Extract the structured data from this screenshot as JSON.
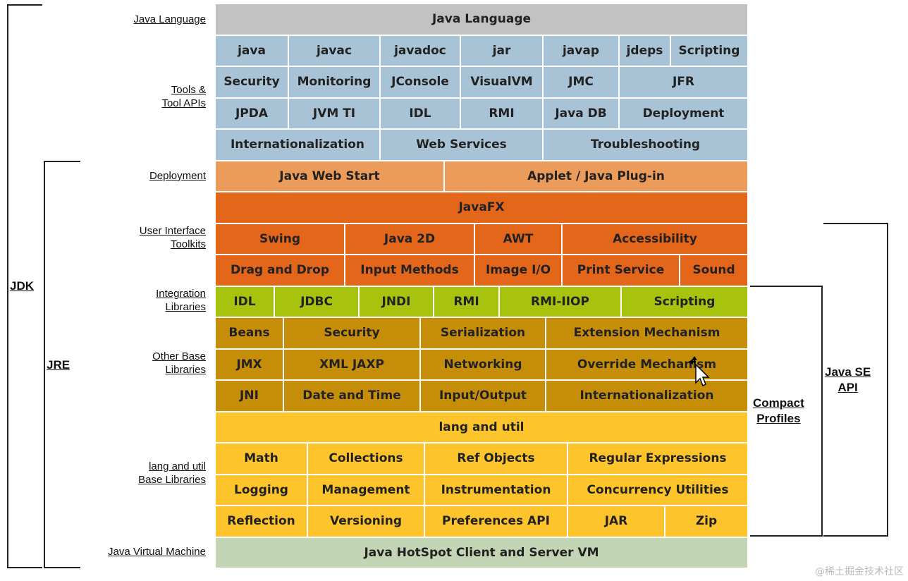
{
  "rows": [
    {
      "label": "",
      "cells": [
        {
          "text": "Java Language",
          "w": 756
        }
      ]
    },
    {
      "cells": [
        {
          "text": "java",
          "w": 104
        },
        {
          "text": "javac",
          "w": 130
        },
        {
          "text": "javadoc",
          "w": 114
        },
        {
          "text": "jar",
          "w": 117
        },
        {
          "text": "javap",
          "w": 108
        },
        {
          "text": "jdeps",
          "w": 73
        },
        {
          "text": "Scripting",
          "w": 110
        }
      ]
    },
    {
      "cells": [
        {
          "text": "Security",
          "w": 104
        },
        {
          "text": "Monitoring",
          "w": 130
        },
        {
          "text": "JConsole",
          "w": 114
        },
        {
          "text": "VisualVM",
          "w": 117
        },
        {
          "text": "JMC",
          "w": 108
        },
        {
          "text": "JFR",
          "w": 183
        }
      ]
    },
    {
      "cells": [
        {
          "text": "JPDA",
          "w": 104
        },
        {
          "text": "JVM TI",
          "w": 130
        },
        {
          "text": "IDL",
          "w": 114
        },
        {
          "text": "RMI",
          "w": 117
        },
        {
          "text": "Java DB",
          "w": 108
        },
        {
          "text": "Deployment",
          "w": 183
        }
      ]
    },
    {
      "cells": [
        {
          "text": "Internationalization",
          "w": 234
        },
        {
          "text": "Web Services",
          "w": 231
        },
        {
          "text": "Troubleshooting",
          "w": 291
        }
      ]
    },
    {
      "cells": [
        {
          "text": "Java Web Start",
          "w": 325
        },
        {
          "text": "Applet / Java Plug-in",
          "w": 431
        }
      ]
    },
    {
      "cells": [
        {
          "text": "JavaFX",
          "w": 756
        }
      ]
    },
    {
      "cells": [
        {
          "text": "Swing",
          "w": 184
        },
        {
          "text": "Java 2D",
          "w": 184
        },
        {
          "text": "AWT",
          "w": 124
        },
        {
          "text": "Accessibility",
          "w": 264
        }
      ]
    },
    {
      "cells": [
        {
          "text": "Drag and Drop",
          "w": 184
        },
        {
          "text": "Input Methods",
          "w": 184
        },
        {
          "text": "Image I/O",
          "w": 124
        },
        {
          "text": "Print Service",
          "w": 167
        },
        {
          "text": "Sound",
          "w": 97
        }
      ]
    },
    {
      "cells": [
        {
          "text": "IDL",
          "w": 84
        },
        {
          "text": "JDBC",
          "w": 120
        },
        {
          "text": "JNDI",
          "w": 106
        },
        {
          "text": "RMI",
          "w": 93
        },
        {
          "text": "RMI-IIOP",
          "w": 173
        },
        {
          "text": "Scripting",
          "w": 180
        }
      ]
    },
    {
      "cells": [
        {
          "text": "Beans",
          "w": 97
        },
        {
          "text": "Security",
          "w": 194
        },
        {
          "text": "Serialization",
          "w": 178
        },
        {
          "text": "Extension Mechanism",
          "w": 287
        }
      ]
    },
    {
      "cells": [
        {
          "text": "JMX",
          "w": 97
        },
        {
          "text": "XML JAXP",
          "w": 194
        },
        {
          "text": "Networking",
          "w": 178
        },
        {
          "text": "Override Mechanism",
          "w": 287
        }
      ]
    },
    {
      "cells": [
        {
          "text": "JNI",
          "w": 97
        },
        {
          "text": "Date and Time",
          "w": 194
        },
        {
          "text": "Input/Output",
          "w": 178
        },
        {
          "text": "Internationalization",
          "w": 287
        }
      ]
    },
    {
      "cells": [
        {
          "text": "lang and util",
          "w": 756
        }
      ]
    },
    {
      "cells": [
        {
          "text": "Math",
          "w": 131
        },
        {
          "text": "Collections",
          "w": 166
        },
        {
          "text": "Ref Objects",
          "w": 203
        },
        {
          "text": "Regular Expressions",
          "w": 256
        }
      ]
    },
    {
      "cells": [
        {
          "text": "Logging",
          "w": 131
        },
        {
          "text": "Management",
          "w": 166
        },
        {
          "text": "Instrumentation",
          "w": 203
        },
        {
          "text": "Concurrency Utilities",
          "w": 256
        }
      ]
    },
    {
      "cells": [
        {
          "text": "Reflection",
          "w": 131
        },
        {
          "text": "Versioning",
          "w": 166
        },
        {
          "text": "Preferences API",
          "w": 203
        },
        {
          "text": "JAR",
          "w": 138
        },
        {
          "text": "Zip",
          "w": 118
        }
      ]
    },
    {
      "cells": [
        {
          "text": "Java HotSpot Client and Server VM",
          "w": 756
        }
      ]
    }
  ],
  "row_colors": [
    "gray",
    "blue",
    "blue",
    "blue",
    "blue",
    "lorg",
    "dorg",
    "dorg",
    "dorg",
    "lime",
    "brn",
    "brn",
    "brn",
    "yel",
    "yel",
    "yel",
    "yel",
    "vm"
  ],
  "labels": {
    "java_language": "Java Language",
    "tools": "Tools &\nTool APIs",
    "deployment": "Deployment",
    "ui_toolkits": "User Interface\nToolkits",
    "integration": "Integration\nLibraries",
    "other_base": "Other Base\nLibraries",
    "lang_util": "lang and util\nBase Libraries",
    "jvm": "Java Virtual Machine"
  },
  "brackets": {
    "jdk": "JDK",
    "jre": "JRE",
    "compact_profiles": "Compact\nProfiles",
    "java_se_api": "Java SE\nAPI"
  },
  "watermark": "@稀土掘金技术社区"
}
